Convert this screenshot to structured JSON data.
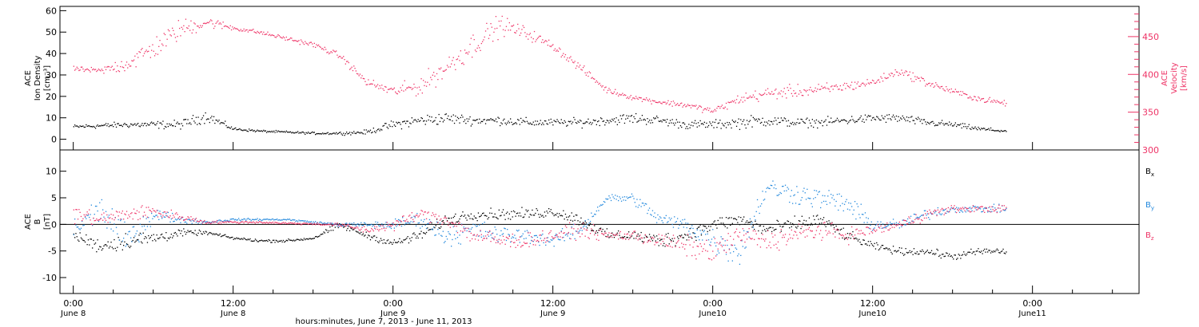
{
  "chart_data": [
    {
      "type": "scatter",
      "panel": "top",
      "ylabel_left": [
        "ACE",
        "Ion Density",
        "[cm⁻³]"
      ],
      "ylabel_right": [
        "ACE",
        "Velocity",
        "[km/s]"
      ],
      "left_axis": {
        "ylim": [
          -5,
          62
        ],
        "ticks": [
          "0",
          "10",
          "20",
          "30",
          "40",
          "50",
          "60"
        ]
      },
      "right_axis": {
        "ylim": [
          300,
          490
        ],
        "ticks": [
          "300",
          "350",
          "400",
          "450"
        ]
      },
      "series": [
        {
          "axis": "left",
          "color": "#000000",
          "x_hours": [
            0,
            4,
            8,
            10,
            12,
            14,
            16,
            18,
            20,
            22,
            24,
            26,
            28,
            30,
            32,
            34,
            36,
            38,
            40,
            42,
            44,
            46,
            48,
            50,
            52,
            54,
            56,
            58,
            60,
            62,
            64,
            66,
            68,
            70
          ],
          "y": [
            6,
            7,
            7,
            11,
            5,
            4,
            3.5,
            3,
            3,
            3.5,
            7,
            9,
            10,
            9,
            9,
            8,
            8,
            8,
            9,
            10,
            9,
            7,
            7,
            8,
            9,
            8,
            8,
            9,
            10,
            10,
            8,
            7,
            5,
            4
          ],
          "spread": [
            1.5,
            2,
            3,
            4,
            1,
            0.8,
            0.8,
            0.8,
            1,
            1.5,
            3,
            4,
            4,
            3,
            3,
            3,
            2.5,
            3,
            3,
            4,
            3,
            3,
            3,
            4,
            4,
            3,
            3,
            3,
            3,
            3,
            2.5,
            2,
            1.5,
            1
          ]
        },
        {
          "axis": "right",
          "color": "#ee3366",
          "x_hours": [
            0,
            2,
            4,
            6,
            8,
            10,
            12,
            14,
            16,
            18,
            20,
            22,
            24,
            26,
            28,
            30,
            32,
            34,
            36,
            38,
            40,
            42,
            44,
            46,
            48,
            50,
            52,
            54,
            56,
            58,
            60,
            62,
            64,
            66,
            68,
            70
          ],
          "y": [
            408,
            405,
            415,
            435,
            460,
            470,
            462,
            456,
            448,
            440,
            425,
            390,
            378,
            385,
            410,
            440,
            466,
            455,
            438,
            410,
            380,
            370,
            364,
            360,
            352,
            368,
            375,
            378,
            380,
            385,
            390,
            405,
            390,
            378,
            368,
            362
          ],
          "spread": [
            4,
            6,
            18,
            22,
            20,
            12,
            5,
            4,
            4,
            5,
            6,
            8,
            10,
            18,
            22,
            25,
            20,
            12,
            8,
            8,
            6,
            5,
            5,
            6,
            6,
            10,
            12,
            12,
            12,
            10,
            8,
            8,
            8,
            6,
            6,
            5
          ]
        }
      ]
    },
    {
      "type": "scatter",
      "panel": "bottom",
      "ylabel_left": [
        "ACE",
        "B",
        "[nT]"
      ],
      "ylim": [
        -13,
        14
      ],
      "yticks": [
        "-10",
        "-5",
        "0",
        "5",
        "10"
      ],
      "zero_line": true,
      "legend": [
        "B",
        "B",
        "B"
      ],
      "legend_subscripts": [
        "x",
        "y",
        "z"
      ],
      "legend_position": "right",
      "series": [
        {
          "name": "Bx",
          "color": "#000000",
          "x_hours": [
            0,
            2,
            4,
            6,
            8,
            10,
            12,
            14,
            16,
            18,
            20,
            22,
            24,
            26,
            28,
            30,
            32,
            34,
            36,
            38,
            40,
            42,
            44,
            46,
            48,
            50,
            52,
            54,
            56,
            58,
            60,
            62,
            64,
            66,
            68,
            70
          ],
          "y": [
            -2,
            -4,
            -3,
            -2.5,
            -1.5,
            -1.5,
            -2.5,
            -3,
            -3,
            -2.5,
            0,
            -2,
            -3.5,
            -2,
            1,
            2,
            2,
            2,
            2.5,
            1,
            -2,
            -2,
            -3,
            -2,
            0,
            1,
            -1,
            0,
            1,
            -2,
            -4,
            -5,
            -5,
            -6,
            -5,
            -5
          ],
          "spread": [
            1.5,
            2,
            2.5,
            2,
            1,
            0.5,
            0.4,
            0.4,
            0.4,
            0.4,
            1,
            0.8,
            1,
            1.5,
            1.5,
            1.5,
            1.5,
            1.5,
            1.5,
            1.5,
            1.5,
            1.5,
            2,
            2,
            2,
            2,
            2,
            2,
            2,
            1.5,
            1,
            1,
            1,
            1,
            1,
            1
          ]
        },
        {
          "name": "By",
          "color": "#2288dd",
          "x_hours": [
            0,
            2,
            4,
            6,
            8,
            10,
            12,
            14,
            16,
            18,
            20,
            22,
            24,
            26,
            28,
            30,
            32,
            34,
            36,
            38,
            40,
            42,
            44,
            46,
            48,
            50,
            52,
            54,
            56,
            58,
            60,
            62,
            64,
            66,
            68,
            70
          ],
          "y": [
            -1,
            3,
            -3,
            2,
            1,
            0.5,
            1,
            1,
            1,
            0.5,
            0,
            0,
            0,
            1,
            -2,
            -1,
            -2,
            -2,
            -3,
            -1,
            5,
            5,
            1,
            0,
            -3,
            -5,
            7,
            6,
            5,
            4,
            0,
            0,
            2,
            3,
            3,
            3
          ],
          "spread": [
            3,
            4,
            4,
            2,
            1,
            0.5,
            0.3,
            0.3,
            0.3,
            0.3,
            0.5,
            0.8,
            1.5,
            2,
            3,
            3,
            2.5,
            2,
            2,
            2,
            1,
            1.5,
            2,
            2,
            4,
            4,
            3,
            3,
            3,
            3,
            2,
            1.5,
            1.5,
            1,
            1,
            1
          ]
        },
        {
          "name": "Bz",
          "color": "#ee3366",
          "x_hours": [
            0,
            2,
            4,
            6,
            8,
            10,
            12,
            14,
            16,
            18,
            20,
            22,
            24,
            26,
            28,
            30,
            32,
            34,
            36,
            38,
            40,
            42,
            44,
            46,
            48,
            50,
            52,
            54,
            56,
            58,
            60,
            62,
            64,
            66,
            68,
            70
          ],
          "y": [
            2,
            1,
            2,
            2.5,
            1.5,
            0.5,
            0.5,
            0.5,
            0.3,
            0.2,
            0,
            -1,
            0,
            2,
            1,
            -2,
            -3,
            -3,
            -2,
            -1,
            -2,
            -2,
            -3,
            -4,
            -5,
            -2,
            -3,
            -2,
            -1,
            -2,
            -1,
            0,
            2,
            3,
            3,
            3
          ],
          "spread": [
            3,
            2,
            2,
            2,
            1,
            0.5,
            0.3,
            0.3,
            0.3,
            0.3,
            0.5,
            1,
            1.5,
            1.5,
            2,
            2.5,
            2.5,
            2,
            2,
            2,
            1.5,
            1.5,
            2,
            3,
            3,
            3,
            3,
            3,
            2.5,
            2,
            1.5,
            1.5,
            1.5,
            1,
            1,
            1
          ]
        }
      ]
    }
  ],
  "x_axis": {
    "label": "hours:minutes, June  7, 2013 - June 11, 2013",
    "range_hours": [
      -1,
      80
    ],
    "ticks": [
      {
        "hour": 0,
        "time": "0:00",
        "date": "June 8"
      },
      {
        "hour": 12,
        "time": "12:00",
        "date": "June 8"
      },
      {
        "hour": 24,
        "time": "0:00",
        "date": "June 9"
      },
      {
        "hour": 36,
        "time": "12:00",
        "date": "June 9"
      },
      {
        "hour": 48,
        "time": "0:00",
        "date": "June10"
      },
      {
        "hour": 60,
        "time": "12:00",
        "date": "June10"
      },
      {
        "hour": 72,
        "time": "0:00",
        "date": "June11"
      }
    ]
  }
}
